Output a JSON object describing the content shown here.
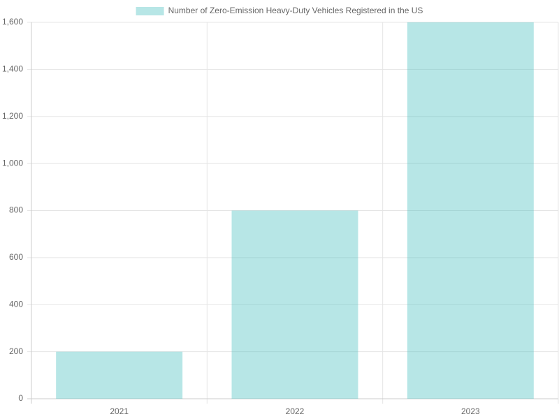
{
  "chart_data": {
    "type": "bar",
    "categories": [
      "2021",
      "2022",
      "2023"
    ],
    "series": [
      {
        "name": "Number of Zero-Emission Heavy-Duty Vehicles Registered in the US",
        "color": "rgba(75,192,192,0.4)",
        "values": [
          200,
          800,
          1600
        ]
      }
    ],
    "ylim": [
      0,
      1600
    ],
    "yticks": [
      0,
      200,
      400,
      600,
      800,
      {
        "value": 1000,
        "label": "1,000"
      },
      {
        "value": 1200,
        "label": "1,200"
      },
      {
        "value": 1400,
        "label": "1,400"
      },
      {
        "value": 1600,
        "label": "1,600"
      }
    ],
    "grid": true,
    "legend": "top"
  }
}
